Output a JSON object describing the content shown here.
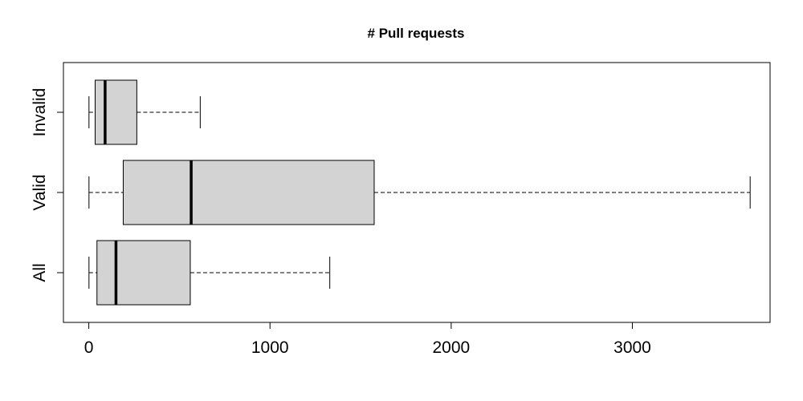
{
  "chart_data": {
    "type": "boxplot",
    "orientation": "horizontal",
    "title": "# Pull requests",
    "xlabel": "",
    "ylabel": "",
    "xlim": [
      -140,
      3760
    ],
    "x_ticks": [
      0,
      1000,
      2000,
      3000
    ],
    "x_tick_labels": [
      "0",
      "1000",
      "2000",
      "3000"
    ],
    "categories": [
      "All",
      "Valid",
      "Invalid"
    ],
    "series": [
      {
        "category": "All",
        "min": 1,
        "q1": 45,
        "median": 150,
        "q3": 560,
        "max": 1330
      },
      {
        "category": "Valid",
        "min": 1,
        "q1": 190,
        "median": 565,
        "q3": 1575,
        "max": 3650
      },
      {
        "category": "Invalid",
        "min": 1,
        "q1": 35,
        "median": 90,
        "q3": 265,
        "max": 615
      }
    ],
    "box_color": "#d3d3d3",
    "grid": false,
    "legend": "none"
  }
}
